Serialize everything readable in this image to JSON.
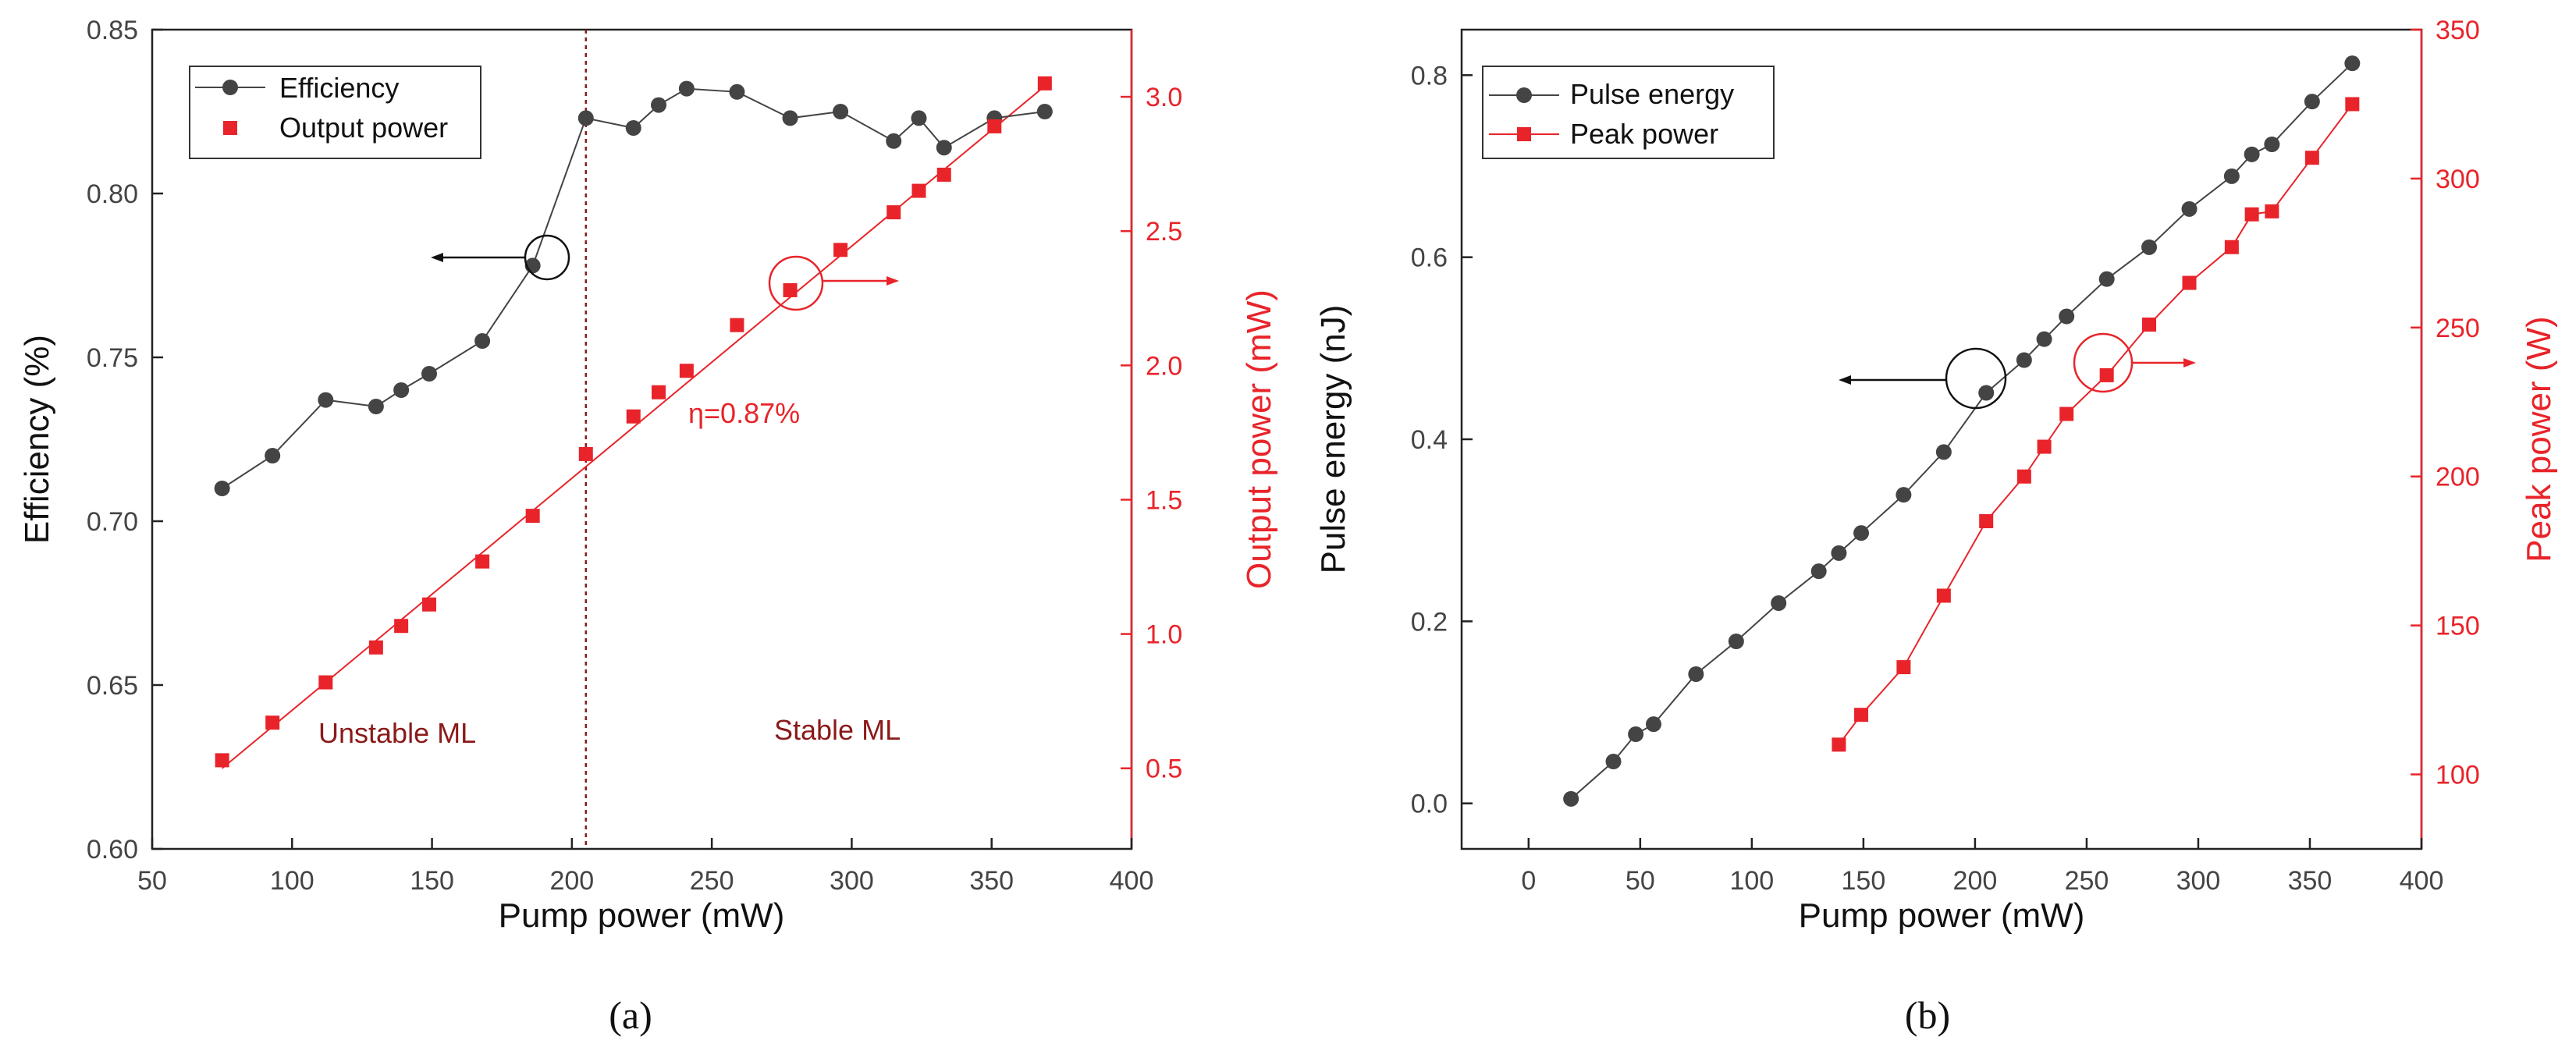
{
  "figure": {
    "colors": {
      "dark": "#444444",
      "red": "#e8242a",
      "annotation": "#8b1a1a"
    }
  },
  "chart_data": [
    {
      "type": "line",
      "panel_label": "(a)",
      "xlabel": "Pump power (mW)",
      "ylabel": "Efficiency (%)",
      "y2label": "Output power (mW)",
      "xlim": [
        50,
        400
      ],
      "ylim": [
        0.6,
        0.85
      ],
      "y2lim": [
        0.2,
        3.25
      ],
      "xticks": [
        "50",
        "100",
        "150",
        "200",
        "250",
        "300",
        "350",
        "400"
      ],
      "yticks": [
        "0.60",
        "0.65",
        "0.70",
        "0.75",
        "0.80",
        "0.85"
      ],
      "y2ticks": [
        "0.5",
        "1.0",
        "1.5",
        "2.0",
        "2.5",
        "3.0"
      ],
      "legend_position": "top-left",
      "series": [
        {
          "name": "Efficiency",
          "axis": "left",
          "marker": "circle",
          "color": "#444444",
          "x": [
            75,
            93,
            112,
            130,
            139,
            149,
            168,
            186,
            205,
            222,
            231,
            241,
            259,
            278,
            296,
            315,
            324,
            333,
            351,
            369
          ],
          "values": [
            0.71,
            0.72,
            0.737,
            0.735,
            0.74,
            0.745,
            0.755,
            0.778,
            0.823,
            0.82,
            0.827,
            0.832,
            0.831,
            0.823,
            0.825,
            0.816,
            0.823,
            0.814,
            0.823,
            0.825
          ]
        },
        {
          "name": "Output power",
          "axis": "right",
          "marker": "square",
          "color": "#e8242a",
          "x": [
            75,
            93,
            112,
            130,
            139,
            149,
            168,
            186,
            205,
            222,
            231,
            241,
            259,
            278,
            296,
            315,
            324,
            333,
            351,
            369
          ],
          "values": [
            0.53,
            0.67,
            0.82,
            0.95,
            1.03,
            1.11,
            1.27,
            1.44,
            1.67,
            1.81,
            1.9,
            1.98,
            2.15,
            2.28,
            2.43,
            2.57,
            2.65,
            2.71,
            2.89,
            3.05
          ]
        }
      ],
      "fit_line": {
        "x": [
          75,
          369
        ],
        "values": [
          0.5,
          3.04
        ],
        "label": "η=0.87%"
      },
      "threshold_x": 205,
      "annotations": {
        "unstable": "Unstable ML",
        "stable": "Stable ML"
      }
    },
    {
      "type": "line",
      "panel_label": "(b)",
      "xlabel": "Pump power (mW)",
      "ylabel": "Pulse energy (nJ)",
      "y2label": "Peak power (W)",
      "xlim": [
        -30,
        400
      ],
      "ylim": [
        -0.05,
        0.85
      ],
      "y2lim": [
        75,
        350
      ],
      "xticks": [
        "0",
        "50",
        "100",
        "150",
        "200",
        "250",
        "300",
        "350",
        "400"
      ],
      "yticks": [
        "0.0",
        "0.2",
        "0.4",
        "0.6",
        "0.8"
      ],
      "y2ticks": [
        "100",
        "150",
        "200",
        "250",
        "300",
        "350"
      ],
      "legend_position": "top-left",
      "series": [
        {
          "name": "Pulse energy",
          "axis": "left",
          "marker": "circle",
          "color": "#444444",
          "x": [
            19,
            38,
            48,
            56,
            75,
            93,
            112,
            130,
            139,
            149,
            168,
            186,
            205,
            222,
            231,
            241,
            259,
            278,
            296,
            315,
            324,
            333,
            351,
            369
          ],
          "values": [
            0.005,
            0.046,
            0.076,
            0.087,
            0.142,
            0.178,
            0.22,
            0.255,
            0.275,
            0.297,
            0.339,
            0.386,
            0.451,
            0.487,
            0.51,
            0.535,
            0.576,
            0.611,
            0.653,
            0.689,
            0.713,
            0.724,
            0.771,
            0.813
          ]
        },
        {
          "name": "Peak power",
          "axis": "right",
          "marker": "square",
          "color": "#e8242a",
          "x": [
            139,
            149,
            168,
            186,
            205,
            222,
            231,
            241,
            259,
            278,
            296,
            315,
            324,
            333,
            351,
            369
          ],
          "values": [
            110,
            120,
            136,
            160,
            185,
            200,
            210,
            221,
            234,
            251,
            265,
            277,
            288,
            289,
            307,
            325
          ]
        }
      ]
    }
  ]
}
